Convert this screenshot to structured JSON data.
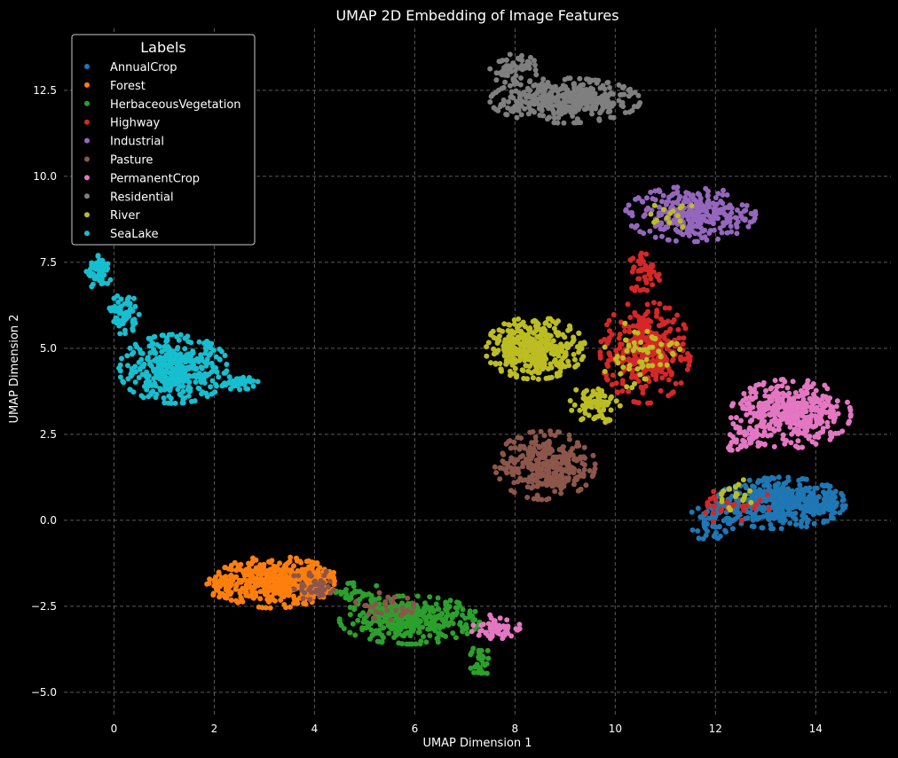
{
  "chart_data": {
    "type": "scatter",
    "title": "UMAP 2D Embedding of Image Features",
    "xlabel": "UMAP Dimension 1",
    "ylabel": "UMAP Dimension 2",
    "xlim": [
      -1.0,
      15.5
    ],
    "ylim": [
      -5.7,
      14.3
    ],
    "xticks": [
      0,
      2,
      4,
      6,
      8,
      10,
      12,
      14
    ],
    "xtick_labels": [
      "0",
      "2",
      "4",
      "6",
      "8",
      "10",
      "12",
      "14"
    ],
    "yticks": [
      -5.0,
      -2.5,
      0.0,
      2.5,
      5.0,
      7.5,
      10.0,
      12.5
    ],
    "ytick_labels": [
      "−5.0",
      "−2.5",
      "0.0",
      "2.5",
      "5.0",
      "7.5",
      "10.0",
      "12.5"
    ],
    "grid": true,
    "background": "#000000",
    "legend": {
      "title": "Labels",
      "placement": "top-left",
      "entries": [
        "AnnualCrop",
        "Forest",
        "HerbaceousVegetation",
        "Highway",
        "Industrial",
        "Pasture",
        "PermanentCrop",
        "Residential",
        "River",
        "SeaLake"
      ]
    },
    "series": [
      {
        "name": "AnnualCrop",
        "color": "#1f77b4",
        "clusters": [
          {
            "cx": 13.3,
            "cy": 0.5,
            "rx": 1.3,
            "ry": 0.75,
            "n": 420
          },
          {
            "cx": 12.0,
            "cy": 0.0,
            "rx": 0.5,
            "ry": 0.7,
            "n": 60
          },
          {
            "cx": 14.3,
            "cy": 0.5,
            "rx": 0.4,
            "ry": 0.35,
            "n": 40
          }
        ]
      },
      {
        "name": "Forest",
        "color": "#ff7f0e",
        "clusters": [
          {
            "cx": 3.2,
            "cy": -1.8,
            "rx": 1.2,
            "ry": 0.75,
            "n": 420
          },
          {
            "cx": 2.2,
            "cy": -1.9,
            "rx": 0.35,
            "ry": 0.35,
            "n": 50
          },
          {
            "cx": 4.0,
            "cy": -1.6,
            "rx": 0.5,
            "ry": 0.5,
            "n": 40
          }
        ]
      },
      {
        "name": "HerbaceousVegetation",
        "color": "#2ca02c",
        "clusters": [
          {
            "cx": 5.9,
            "cy": -2.9,
            "rx": 1.4,
            "ry": 0.7,
            "n": 380
          },
          {
            "cx": 7.3,
            "cy": -4.1,
            "rx": 0.2,
            "ry": 0.5,
            "n": 30
          },
          {
            "cx": 4.8,
            "cy": -2.1,
            "rx": 0.5,
            "ry": 0.4,
            "n": 30
          }
        ]
      },
      {
        "name": "Highway",
        "color": "#d62728",
        "clusters": [
          {
            "cx": 10.6,
            "cy": 4.9,
            "rx": 0.9,
            "ry": 1.5,
            "n": 320
          },
          {
            "cx": 10.6,
            "cy": 7.2,
            "rx": 0.35,
            "ry": 0.7,
            "n": 50
          },
          {
            "cx": 12.3,
            "cy": 0.5,
            "rx": 0.8,
            "ry": 0.6,
            "n": 30
          }
        ]
      },
      {
        "name": "Industrial",
        "color": "#9467bd",
        "clusters": [
          {
            "cx": 11.5,
            "cy": 8.9,
            "rx": 1.3,
            "ry": 0.8,
            "n": 300
          }
        ]
      },
      {
        "name": "Pasture",
        "color": "#8c564b",
        "clusters": [
          {
            "cx": 8.6,
            "cy": 1.6,
            "rx": 1.0,
            "ry": 1.0,
            "n": 320
          },
          {
            "cx": 4.0,
            "cy": -1.9,
            "rx": 0.5,
            "ry": 0.5,
            "n": 40
          },
          {
            "cx": 5.4,
            "cy": -2.5,
            "rx": 0.6,
            "ry": 0.4,
            "n": 30
          }
        ]
      },
      {
        "name": "PermanentCrop",
        "color": "#e377c2",
        "clusters": [
          {
            "cx": 13.5,
            "cy": 3.1,
            "rx": 1.2,
            "ry": 1.0,
            "n": 420
          },
          {
            "cx": 7.6,
            "cy": -3.1,
            "rx": 0.5,
            "ry": 0.35,
            "n": 60
          },
          {
            "cx": 12.5,
            "cy": 2.3,
            "rx": 0.4,
            "ry": 0.3,
            "n": 30
          }
        ]
      },
      {
        "name": "Residential",
        "color": "#7f7f7f",
        "clusters": [
          {
            "cx": 9.0,
            "cy": 12.2,
            "rx": 1.5,
            "ry": 0.65,
            "n": 420
          },
          {
            "cx": 8.0,
            "cy": 13.1,
            "rx": 0.5,
            "ry": 0.45,
            "n": 60
          }
        ]
      },
      {
        "name": "River",
        "color": "#bcbd22",
        "clusters": [
          {
            "cx": 8.4,
            "cy": 5.0,
            "rx": 1.0,
            "ry": 0.9,
            "n": 380
          },
          {
            "cx": 9.6,
            "cy": 3.4,
            "rx": 0.5,
            "ry": 0.6,
            "n": 70
          },
          {
            "cx": 10.5,
            "cy": 4.8,
            "rx": 0.8,
            "ry": 1.0,
            "n": 60
          },
          {
            "cx": 11.0,
            "cy": 8.9,
            "rx": 0.6,
            "ry": 0.5,
            "n": 15
          },
          {
            "cx": 12.4,
            "cy": 0.7,
            "rx": 0.5,
            "ry": 0.5,
            "n": 20
          }
        ]
      },
      {
        "name": "SeaLake",
        "color": "#17becf",
        "clusters": [
          {
            "cx": 1.2,
            "cy": 4.4,
            "rx": 1.1,
            "ry": 1.0,
            "n": 420
          },
          {
            "cx": -0.3,
            "cy": 7.2,
            "rx": 0.25,
            "ry": 0.5,
            "n": 60
          },
          {
            "cx": 0.2,
            "cy": 6.0,
            "rx": 0.3,
            "ry": 0.6,
            "n": 60
          },
          {
            "cx": 2.5,
            "cy": 4.0,
            "rx": 0.4,
            "ry": 0.2,
            "n": 40
          }
        ]
      }
    ]
  }
}
